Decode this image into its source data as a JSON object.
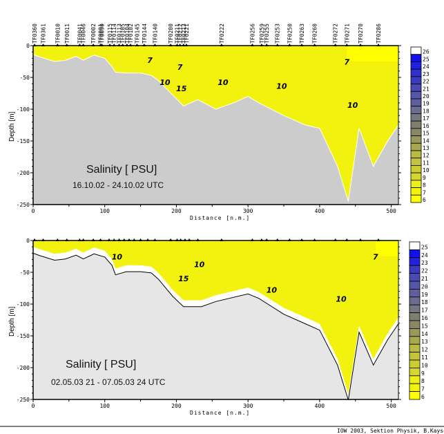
{
  "credit": "IOW 2003, Sektion Physik, B.Kayser",
  "chart_data": [
    {
      "type": "heatmap",
      "subtype": "contour-section",
      "title": "Salinity [ PSU]",
      "subtitle": "16.10.02 - 24.10.02 UTC",
      "xlabel": "Distance [n.m.]",
      "ylabel": "Depth [m]",
      "xlim": [
        0,
        510
      ],
      "ylim": [
        -250,
        0
      ],
      "xticks": [
        0,
        100,
        200,
        300,
        400,
        500
      ],
      "yticks": [
        0,
        -50,
        -100,
        -150,
        -200,
        -250
      ],
      "bottom_color": "#cccccc",
      "stations": [
        {
          "name": "TF0360",
          "x": 2
        },
        {
          "name": "TF0361",
          "x": 14
        },
        {
          "name": "TF0010",
          "x": 34
        },
        {
          "name": "TF0011",
          "x": 47
        },
        {
          "name": "TF0041",
          "x": 65
        },
        {
          "name": "TF0046",
          "x": 70
        },
        {
          "name": "TF0002",
          "x": 84
        },
        {
          "name": "TF0091",
          "x": 94
        },
        {
          "name": "TF0090",
          "x": 96
        },
        {
          "name": "TF0115",
          "x": 107
        },
        {
          "name": "TF0114",
          "x": 113
        },
        {
          "name": "TF0113",
          "x": 120
        },
        {
          "name": "TF0105",
          "x": 125
        },
        {
          "name": "TF0104",
          "x": 131
        },
        {
          "name": "TF0102",
          "x": 136
        },
        {
          "name": "TF0145",
          "x": 145
        },
        {
          "name": "TF0144",
          "x": 155
        },
        {
          "name": "TF0140",
          "x": 170
        },
        {
          "name": "TF0200",
          "x": 192
        },
        {
          "name": "TF0211",
          "x": 201
        },
        {
          "name": "TF0212",
          "x": 205
        },
        {
          "name": "TF0213",
          "x": 210
        },
        {
          "name": "TF0221",
          "x": 214
        },
        {
          "name": "TF0222",
          "x": 263
        },
        {
          "name": "TF0256",
          "x": 306
        },
        {
          "name": "TF0259",
          "x": 319
        },
        {
          "name": "TF0255",
          "x": 326
        },
        {
          "name": "TF0253",
          "x": 341
        },
        {
          "name": "TF0250",
          "x": 358
        },
        {
          "name": "TF0263",
          "x": 375
        },
        {
          "name": "TF0260",
          "x": 393
        },
        {
          "name": "TF0272",
          "x": 422
        },
        {
          "name": "TF0271",
          "x": 438
        },
        {
          "name": "TF0270",
          "x": 457
        },
        {
          "name": "TF0286",
          "x": 482
        }
      ],
      "bathymetry": [
        [
          0,
          -14
        ],
        [
          10,
          -18
        ],
        [
          30,
          -25
        ],
        [
          45,
          -23
        ],
        [
          60,
          -17
        ],
        [
          70,
          -23
        ],
        [
          85,
          -15
        ],
        [
          100,
          -20
        ],
        [
          110,
          -33
        ],
        [
          115,
          -42
        ],
        [
          130,
          -43
        ],
        [
          150,
          -43
        ],
        [
          165,
          -47
        ],
        [
          175,
          -55
        ],
        [
          195,
          -78
        ],
        [
          210,
          -95
        ],
        [
          230,
          -85
        ],
        [
          255,
          -100
        ],
        [
          280,
          -90
        ],
        [
          300,
          -80
        ],
        [
          315,
          -90
        ],
        [
          350,
          -110
        ],
        [
          380,
          -125
        ],
        [
          400,
          -130
        ],
        [
          425,
          -190
        ],
        [
          440,
          -245
        ],
        [
          455,
          -130
        ],
        [
          475,
          -190
        ],
        [
          495,
          -150
        ],
        [
          510,
          -125
        ]
      ],
      "contour_labels": [
        {
          "value": "7",
          "x": 163,
          "y": -27
        },
        {
          "value": "7",
          "x": 205,
          "y": -38
        },
        {
          "value": "10",
          "x": 184,
          "y": -62
        },
        {
          "value": "15",
          "x": 207,
          "y": -72
        },
        {
          "value": "10",
          "x": 265,
          "y": -62
        },
        {
          "value": "10",
          "x": 347,
          "y": -68
        },
        {
          "value": "10",
          "x": 446,
          "y": -98
        },
        {
          "value": "7",
          "x": 438,
          "y": -30
        }
      ],
      "legend": {
        "placement": "right",
        "levels": [
          6,
          7,
          8,
          9,
          10,
          11,
          12,
          13,
          14,
          15,
          16,
          17,
          18,
          19,
          20,
          21,
          22,
          23,
          24,
          25,
          26
        ],
        "colors": [
          "#ffff00",
          "#f2f20e",
          "#eeee1a",
          "#d6d630",
          "#cccc33",
          "#c4c43c",
          "#bbbb44",
          "#a8a850",
          "#99995c",
          "#888866",
          "#7f7f70",
          "#777780",
          "#6c6c90",
          "#5f5fa0",
          "#5555aa",
          "#4a4ab0",
          "#3a3ac0",
          "#2f2fd0",
          "#2020e0",
          "#1111ee",
          "#ffffff"
        ]
      }
    },
    {
      "type": "heatmap",
      "subtype": "contour-section",
      "title": "Salinity [ PSU]",
      "subtitle": "02.05.03 21 - 07.05.03 24 UTC",
      "xlabel": "Distance [n.m.]",
      "ylabel": "Depth [m]",
      "xlim": [
        0,
        510
      ],
      "ylim": [
        -250,
        0
      ],
      "xticks": [
        0,
        100,
        200,
        300,
        400,
        500
      ],
      "yticks": [
        0,
        -50,
        -100,
        -150,
        -200,
        -250
      ],
      "bottom_color": "#e6e6e6",
      "station_markers_x": [
        2,
        14,
        34,
        47,
        65,
        70,
        84,
        94,
        106,
        113,
        120,
        127,
        134,
        141,
        150,
        160,
        170,
        192,
        201,
        206,
        212,
        218,
        230,
        263,
        306,
        319,
        326,
        341,
        358,
        375,
        393,
        422,
        438,
        457,
        482
      ],
      "bathymetry": [
        [
          0,
          -14
        ],
        [
          10,
          -18
        ],
        [
          30,
          -25
        ],
        [
          45,
          -23
        ],
        [
          60,
          -17
        ],
        [
          70,
          -23
        ],
        [
          85,
          -15
        ],
        [
          100,
          -20
        ],
        [
          110,
          -33
        ],
        [
          115,
          -48
        ],
        [
          130,
          -43
        ],
        [
          150,
          -43
        ],
        [
          165,
          -45
        ],
        [
          175,
          -55
        ],
        [
          195,
          -82
        ],
        [
          210,
          -98
        ],
        [
          235,
          -98
        ],
        [
          255,
          -90
        ],
        [
          300,
          -78
        ],
        [
          315,
          -85
        ],
        [
          350,
          -110
        ],
        [
          380,
          -125
        ],
        [
          400,
          -135
        ],
        [
          425,
          -190
        ],
        [
          440,
          -245
        ],
        [
          455,
          -138
        ],
        [
          475,
          -190
        ],
        [
          495,
          -150
        ],
        [
          510,
          -125
        ]
      ],
      "contour_labels": [
        {
          "value": "10",
          "x": 117,
          "y": -30
        },
        {
          "value": "10",
          "x": 232,
          "y": -42
        },
        {
          "value": "15",
          "x": 210,
          "y": -64
        },
        {
          "value": "10",
          "x": 333,
          "y": -82
        },
        {
          "value": "10",
          "x": 430,
          "y": -96
        },
        {
          "value": "7",
          "x": 478,
          "y": -30
        }
      ],
      "legend": {
        "placement": "right",
        "levels": [
          6,
          7,
          8,
          9,
          10,
          11,
          12,
          13,
          14,
          15,
          16,
          17,
          18,
          19,
          20,
          21,
          22,
          23,
          24,
          25
        ],
        "colors": [
          "#ffff00",
          "#f2f20e",
          "#eeee1a",
          "#d6d630",
          "#cccc33",
          "#c4c43c",
          "#bbbb44",
          "#a8a850",
          "#99995c",
          "#888866",
          "#7f7f70",
          "#777780",
          "#6c6c90",
          "#5f5fa0",
          "#5555aa",
          "#4a4ab0",
          "#3a3ac0",
          "#2222dd",
          "#1111ee",
          "#ffffff"
        ]
      }
    }
  ]
}
